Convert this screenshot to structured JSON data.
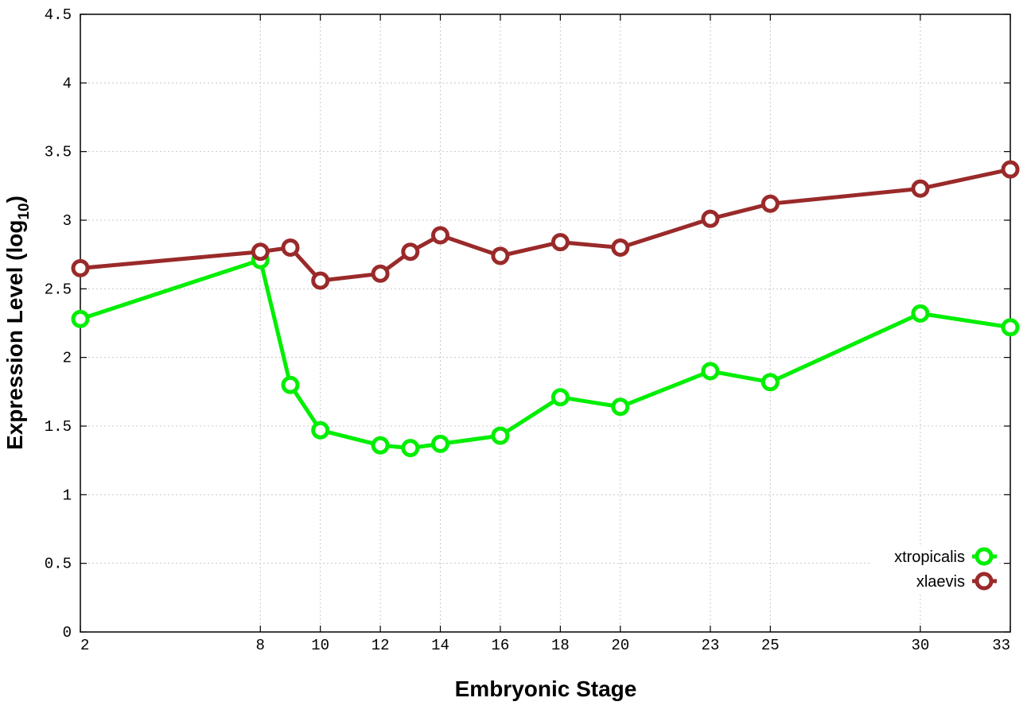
{
  "chart_data": {
    "type": "line",
    "title": "",
    "xlabel": "Embryonic Stage",
    "ylabel_main": "Expression Level (log",
    "ylabel_sub": "10",
    "ylabel_close": ")",
    "x_ticks": [
      "2",
      "8",
      "10",
      "12",
      "14",
      "16",
      "18",
      "20",
      "23",
      "25",
      "30",
      "33"
    ],
    "y_ticks": [
      "0",
      "0.5",
      "1",
      "1.5",
      "2",
      "2.5",
      "3",
      "3.5",
      "4",
      "4.5"
    ],
    "ylim": [
      0,
      4.5
    ],
    "xlim": [
      2,
      33
    ],
    "grid": true,
    "legend_position": "bottom-right",
    "x": [
      2,
      8,
      9,
      10,
      12,
      13,
      14,
      16,
      18,
      20,
      23,
      25,
      30,
      33
    ],
    "series": [
      {
        "name": "xtropicalis",
        "color": "#00ee00",
        "values": [
          2.28,
          2.71,
          1.8,
          1.47,
          1.36,
          1.34,
          1.37,
          1.43,
          1.71,
          1.64,
          1.9,
          1.82,
          2.32,
          2.22
        ]
      },
      {
        "name": "xlaevis",
        "color": "#9a2a2a",
        "values": [
          2.65,
          2.77,
          2.8,
          2.56,
          2.61,
          2.77,
          2.89,
          2.74,
          2.84,
          2.8,
          3.01,
          3.12,
          3.23,
          3.37
        ]
      }
    ]
  }
}
